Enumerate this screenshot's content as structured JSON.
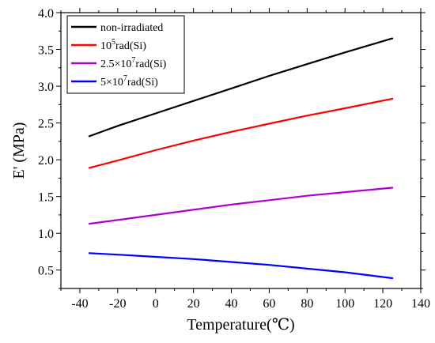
{
  "chart_data": {
    "type": "line",
    "xlabel": "Temperature(℃)",
    "ylabel": "E' (MPa)",
    "xlim": [
      -50,
      140
    ],
    "ylim": [
      0.25,
      4.0
    ],
    "x_ticks": [
      "-40",
      "-20",
      "0",
      "20",
      "40",
      "60",
      "80",
      "100",
      "120",
      "140"
    ],
    "x_tick_values": [
      -40,
      -20,
      0,
      20,
      40,
      60,
      80,
      100,
      120,
      140
    ],
    "y_ticks": [
      "0.5",
      "1.0",
      "1.5",
      "2.0",
      "2.5",
      "3.0",
      "3.5",
      "4.0"
    ],
    "y_tick_values": [
      0.5,
      1.0,
      1.5,
      2.0,
      2.5,
      3.0,
      3.5,
      4.0
    ],
    "grid": false,
    "legend_position": "top-left",
    "series": [
      {
        "name": "non-irradiated",
        "legend": {
          "base": "non-irradiated",
          "sup": "",
          "rest": ""
        },
        "color": "#000000",
        "x": [
          -35,
          -20,
          0,
          20,
          40,
          60,
          80,
          100,
          125
        ],
        "y": [
          2.32,
          2.46,
          2.63,
          2.8,
          2.97,
          3.14,
          3.3,
          3.46,
          3.65
        ]
      },
      {
        "name": "10^5rad(Si)",
        "legend": {
          "base": "10",
          "sup": "5",
          "rest": "rad(Si)"
        },
        "color": "#ff0000",
        "x": [
          -35,
          -20,
          0,
          20,
          40,
          60,
          80,
          100,
          125
        ],
        "y": [
          1.89,
          1.99,
          2.13,
          2.26,
          2.38,
          2.49,
          2.6,
          2.7,
          2.83
        ]
      },
      {
        "name": "2.5×10^7rad(Si)",
        "legend": {
          "base": "2.5×10",
          "sup": "7",
          "rest": "rad(Si)"
        },
        "color": "#b000d0",
        "x": [
          -35,
          -20,
          0,
          20,
          40,
          60,
          80,
          100,
          125
        ],
        "y": [
          1.13,
          1.18,
          1.25,
          1.32,
          1.39,
          1.45,
          1.51,
          1.56,
          1.62
        ]
      },
      {
        "name": "5×10^7rad(Si)",
        "legend": {
          "base": "5×10",
          "sup": "7",
          "rest": "rad(Si)"
        },
        "color": "#0000ff",
        "x": [
          -35,
          -20,
          0,
          20,
          40,
          60,
          80,
          100,
          125
        ],
        "y": [
          0.73,
          0.71,
          0.68,
          0.65,
          0.61,
          0.57,
          0.52,
          0.47,
          0.39
        ]
      }
    ]
  }
}
